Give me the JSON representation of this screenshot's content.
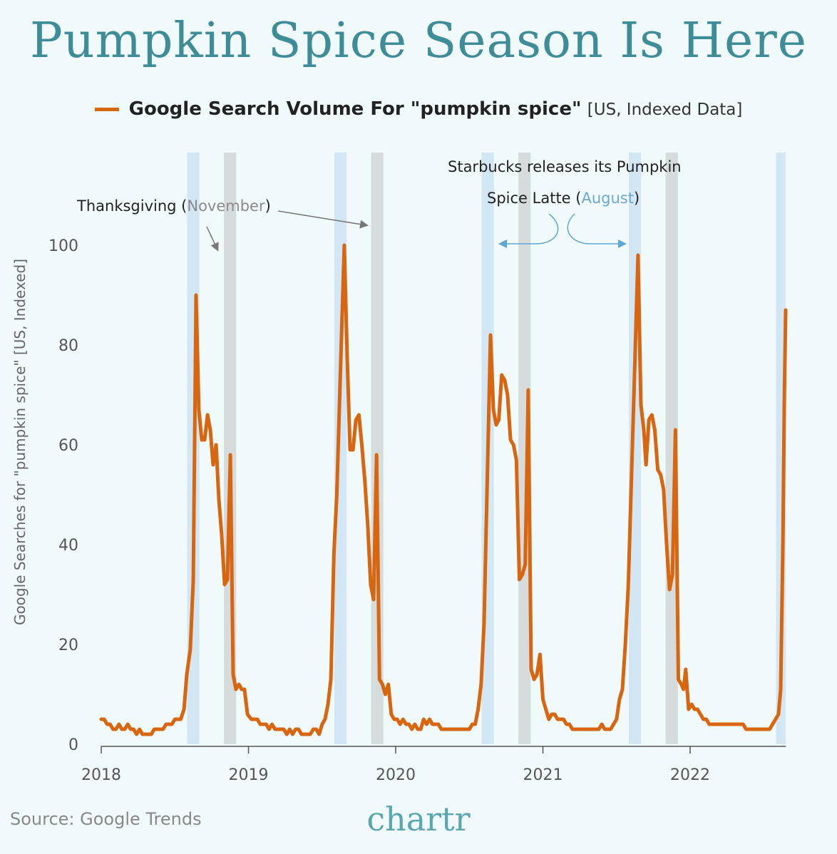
{
  "chart_data": {
    "type": "line",
    "title": "Pumpkin Spice Season Is Here",
    "legend": {
      "label_bold": "Google Search Volume For \"pumpkin spice\"",
      "label_suffix": "[US, Indexed Data]",
      "placement": "top-center"
    },
    "xlabel": "",
    "ylabel": "Google Searches for \"pumpkin spice\" [US, Indexed]",
    "xlim": [
      2018,
      2022.65
    ],
    "ylim": [
      0,
      100
    ],
    "x_ticks": [
      2018,
      2019,
      2020,
      2021,
      2022
    ],
    "x_tick_labels": [
      "2018",
      "2019",
      "2020",
      "2021",
      "2022"
    ],
    "y_ticks": [
      0,
      20,
      40,
      60,
      80,
      100
    ],
    "y_tick_labels": [
      "0",
      "20",
      "40",
      "60",
      "80",
      "100"
    ],
    "series": [
      {
        "name": "Google Search Volume For \"pumpkin spice\"",
        "color": "#d8650f",
        "points": [
          [
            2018.0,
            5
          ],
          [
            2018.02,
            5
          ],
          [
            2018.04,
            4
          ],
          [
            2018.06,
            4
          ],
          [
            2018.08,
            3
          ],
          [
            2018.1,
            3
          ],
          [
            2018.12,
            4
          ],
          [
            2018.14,
            3
          ],
          [
            2018.16,
            3
          ],
          [
            2018.18,
            4
          ],
          [
            2018.2,
            3
          ],
          [
            2018.22,
            3
          ],
          [
            2018.24,
            2
          ],
          [
            2018.26,
            3
          ],
          [
            2018.28,
            2
          ],
          [
            2018.3,
            2
          ],
          [
            2018.32,
            2
          ],
          [
            2018.34,
            2
          ],
          [
            2018.36,
            3
          ],
          [
            2018.38,
            3
          ],
          [
            2018.4,
            3
          ],
          [
            2018.42,
            3
          ],
          [
            2018.44,
            4
          ],
          [
            2018.46,
            4
          ],
          [
            2018.48,
            4
          ],
          [
            2018.5,
            5
          ],
          [
            2018.54,
            5
          ],
          [
            2018.562,
            7
          ],
          [
            2018.581,
            14
          ],
          [
            2018.605,
            19
          ],
          [
            2018.625,
            33
          ],
          [
            2018.644,
            90
          ],
          [
            2018.663,
            67
          ],
          [
            2018.683,
            61
          ],
          [
            2018.702,
            61
          ],
          [
            2018.722,
            66
          ],
          [
            2018.741,
            63
          ],
          [
            2018.76,
            56
          ],
          [
            2018.78,
            60
          ],
          [
            2018.799,
            49
          ],
          [
            2018.818,
            42
          ],
          [
            2018.838,
            32
          ],
          [
            2018.857,
            33
          ],
          [
            2018.877,
            58
          ],
          [
            2018.896,
            14
          ],
          [
            2018.915,
            11
          ],
          [
            2018.935,
            12
          ],
          [
            2018.954,
            11
          ],
          [
            2018.973,
            11
          ],
          [
            2018.993,
            6
          ],
          [
            2019.02,
            5
          ],
          [
            2019.04,
            5
          ],
          [
            2019.06,
            5
          ],
          [
            2019.08,
            4
          ],
          [
            2019.1,
            4
          ],
          [
            2019.12,
            4
          ],
          [
            2019.14,
            3
          ],
          [
            2019.16,
            4
          ],
          [
            2019.18,
            3
          ],
          [
            2019.2,
            3
          ],
          [
            2019.22,
            3
          ],
          [
            2019.24,
            3
          ],
          [
            2019.26,
            2
          ],
          [
            2019.28,
            3
          ],
          [
            2019.3,
            2
          ],
          [
            2019.32,
            3
          ],
          [
            2019.34,
            3
          ],
          [
            2019.36,
            2
          ],
          [
            2019.38,
            2
          ],
          [
            2019.4,
            2
          ],
          [
            2019.42,
            2
          ],
          [
            2019.44,
            3
          ],
          [
            2019.46,
            3
          ],
          [
            2019.48,
            2
          ],
          [
            2019.5,
            4
          ],
          [
            2019.52,
            5
          ],
          [
            2019.54,
            8
          ],
          [
            2019.56,
            13
          ],
          [
            2019.58,
            38
          ],
          [
            2019.6,
            50
          ],
          [
            2019.63,
            80
          ],
          [
            2019.651,
            100
          ],
          [
            2019.67,
            78
          ],
          [
            2019.69,
            59
          ],
          [
            2019.71,
            59
          ],
          [
            2019.73,
            65
          ],
          [
            2019.75,
            66
          ],
          [
            2019.77,
            60
          ],
          [
            2019.79,
            53
          ],
          [
            2019.81,
            44
          ],
          [
            2019.83,
            32
          ],
          [
            2019.85,
            29
          ],
          [
            2019.87,
            58
          ],
          [
            2019.89,
            13
          ],
          [
            2019.91,
            12
          ],
          [
            2019.93,
            10
          ],
          [
            2019.95,
            12
          ],
          [
            2019.97,
            6
          ],
          [
            2019.99,
            5
          ],
          [
            2020.01,
            5
          ],
          [
            2020.03,
            4
          ],
          [
            2020.05,
            5
          ],
          [
            2020.07,
            4
          ],
          [
            2020.09,
            4
          ],
          [
            2020.11,
            3
          ],
          [
            2020.13,
            4
          ],
          [
            2020.15,
            3
          ],
          [
            2020.17,
            3
          ],
          [
            2020.19,
            5
          ],
          [
            2020.21,
            4
          ],
          [
            2020.23,
            5
          ],
          [
            2020.25,
            4
          ],
          [
            2020.27,
            4
          ],
          [
            2020.29,
            4
          ],
          [
            2020.31,
            3
          ],
          [
            2020.35,
            3
          ],
          [
            2020.4,
            3
          ],
          [
            2020.45,
            3
          ],
          [
            2020.5,
            3
          ],
          [
            2020.52,
            4
          ],
          [
            2020.54,
            4
          ],
          [
            2020.56,
            7
          ],
          [
            2020.58,
            12
          ],
          [
            2020.6,
            24
          ],
          [
            2020.62,
            50
          ],
          [
            2020.644,
            82
          ],
          [
            2020.664,
            67
          ],
          [
            2020.683,
            64
          ],
          [
            2020.7,
            65
          ],
          [
            2020.72,
            74
          ],
          [
            2020.74,
            73
          ],
          [
            2020.76,
            70
          ],
          [
            2020.78,
            61
          ],
          [
            2020.8,
            60
          ],
          [
            2020.82,
            57
          ],
          [
            2020.84,
            33
          ],
          [
            2020.86,
            34
          ],
          [
            2020.88,
            36
          ],
          [
            2020.9,
            71
          ],
          [
            2020.92,
            15
          ],
          [
            2020.94,
            13
          ],
          [
            2020.96,
            14
          ],
          [
            2020.98,
            18
          ],
          [
            2021.0,
            9
          ],
          [
            2021.02,
            7
          ],
          [
            2021.04,
            5
          ],
          [
            2021.06,
            6
          ],
          [
            2021.08,
            6
          ],
          [
            2021.1,
            5
          ],
          [
            2021.12,
            5
          ],
          [
            2021.14,
            5
          ],
          [
            2021.16,
            4
          ],
          [
            2021.18,
            4
          ],
          [
            2021.2,
            3
          ],
          [
            2021.25,
            3
          ],
          [
            2021.3,
            3
          ],
          [
            2021.35,
            3
          ],
          [
            2021.38,
            3
          ],
          [
            2021.4,
            4
          ],
          [
            2021.42,
            3
          ],
          [
            2021.44,
            3
          ],
          [
            2021.46,
            3
          ],
          [
            2021.48,
            4
          ],
          [
            2021.5,
            5
          ],
          [
            2021.52,
            9
          ],
          [
            2021.54,
            11
          ],
          [
            2021.56,
            20
          ],
          [
            2021.58,
            32
          ],
          [
            2021.646,
            98
          ],
          [
            2021.666,
            68
          ],
          [
            2021.685,
            63
          ],
          [
            2021.7,
            56
          ],
          [
            2021.72,
            65
          ],
          [
            2021.74,
            66
          ],
          [
            2021.76,
            63
          ],
          [
            2021.78,
            55
          ],
          [
            2021.8,
            54
          ],
          [
            2021.82,
            51
          ],
          [
            2021.84,
            40
          ],
          [
            2021.86,
            31
          ],
          [
            2021.88,
            34
          ],
          [
            2021.9,
            63
          ],
          [
            2021.92,
            13
          ],
          [
            2021.94,
            12
          ],
          [
            2021.955,
            11
          ],
          [
            2021.97,
            15
          ],
          [
            2021.99,
            7
          ],
          [
            2022.01,
            8
          ],
          [
            2022.03,
            7
          ],
          [
            2022.05,
            7
          ],
          [
            2022.07,
            6
          ],
          [
            2022.09,
            5
          ],
          [
            2022.11,
            5
          ],
          [
            2022.13,
            4
          ],
          [
            2022.2,
            4
          ],
          [
            2022.3,
            4
          ],
          [
            2022.36,
            4
          ],
          [
            2022.38,
            3
          ],
          [
            2022.45,
            3
          ],
          [
            2022.54,
            3
          ],
          [
            2022.56,
            4
          ],
          [
            2022.58,
            5
          ],
          [
            2022.6,
            6
          ],
          [
            2022.615,
            11
          ],
          [
            2022.63,
            40
          ],
          [
            2022.64,
            70
          ],
          [
            2022.649,
            87
          ]
        ]
      }
    ],
    "shaded_bands": [
      {
        "label": "August",
        "color": "#d3e6f3",
        "month_start": 7,
        "month_end": 8
      },
      {
        "label": "November",
        "color": "#d6dcdc",
        "month_start": 10,
        "month_end": 11
      }
    ],
    "annotations": {
      "thanksgiving_prefix": "Thanksgiving (",
      "thanksgiving_month": "November",
      "thanksgiving_suffix": ")",
      "starbucks_line1": "Starbucks releases its Pumpkin",
      "starbucks_prefix": "Spice Latte (",
      "starbucks_month": "August",
      "starbucks_suffix": ")"
    },
    "grid": false
  },
  "footer": {
    "source": "Source: Google Trends",
    "logo": "chartr"
  }
}
